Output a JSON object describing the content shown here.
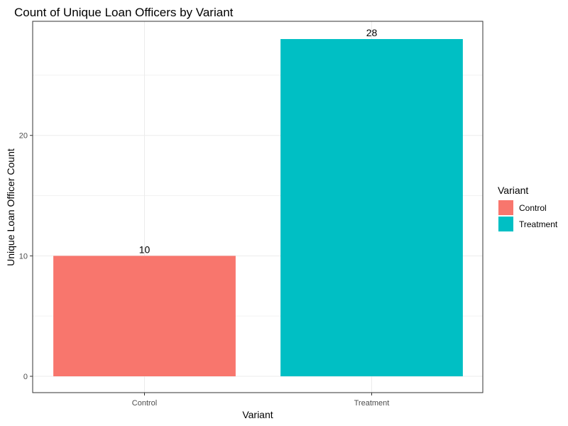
{
  "chart_data": {
    "type": "bar",
    "title": "Count of Unique Loan Officers by Variant",
    "xlabel": "Variant",
    "ylabel": "Unique Loan Officer Count",
    "categories": [
      "Control",
      "Treatment"
    ],
    "values": [
      10,
      28
    ],
    "data_labels": [
      "10",
      "28"
    ],
    "colors": [
      "#F8766D",
      "#00BFC4"
    ],
    "ylim": [
      0,
      29.4
    ],
    "yticks": [
      0,
      10,
      20
    ],
    "ytick_labels": [
      "0",
      "10",
      "20"
    ],
    "grid": true,
    "legend": {
      "title": "Variant",
      "position": "right",
      "entries": [
        {
          "label": "Control",
          "color": "#F8766D"
        },
        {
          "label": "Treatment",
          "color": "#00BFC4"
        }
      ]
    }
  }
}
